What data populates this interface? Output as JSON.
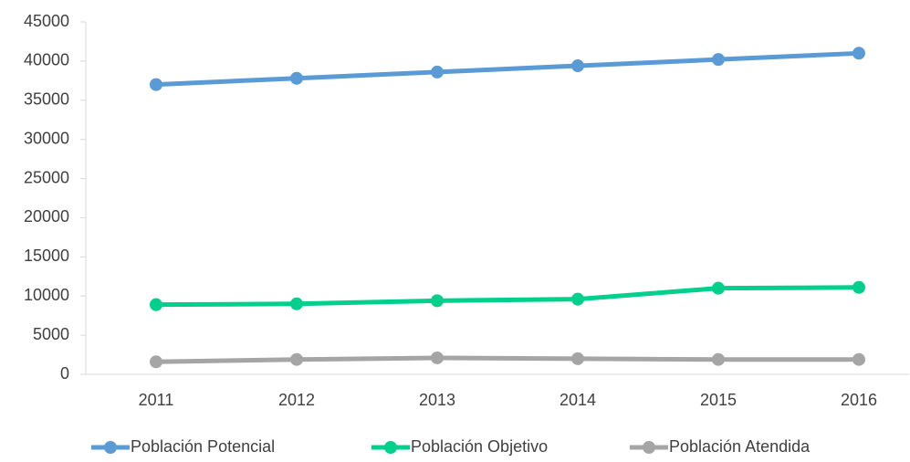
{
  "chart_data": {
    "type": "line",
    "categories": [
      "2011",
      "2012",
      "2013",
      "2014",
      "2015",
      "2016"
    ],
    "series": [
      {
        "name": "Población Potencial",
        "color": "#5b9bd5",
        "values": [
          37000,
          37800,
          38600,
          39400,
          40200,
          41000
        ]
      },
      {
        "name": "Población Objetivo",
        "color": "#00d08c",
        "values": [
          8900,
          9000,
          9400,
          9600,
          11000,
          11100
        ]
      },
      {
        "name": "Población Atendida",
        "color": "#a5a5a5",
        "values": [
          1600,
          1900,
          2100,
          2000,
          1900,
          1900
        ]
      }
    ],
    "ylim": [
      0,
      45000
    ],
    "yticks": [
      0,
      5000,
      10000,
      15000,
      20000,
      25000,
      30000,
      35000,
      40000,
      45000
    ],
    "grid": false,
    "legend": "bottom"
  }
}
